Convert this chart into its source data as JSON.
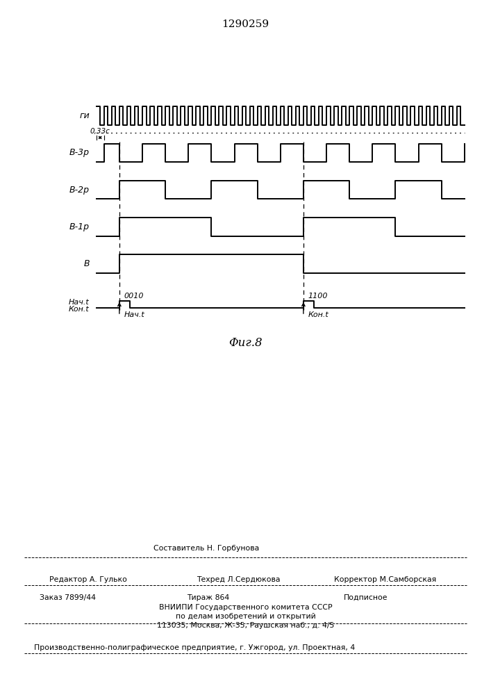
{
  "title": "1290259",
  "fig_label": "Φиг.8",
  "background_color": "#ffffff",
  "line_color": "#000000",
  "signal_labels": [
    "ги",
    "В-3р",
    "В-2р",
    "В-1р",
    "В"
  ],
  "annotation1_code": "0010",
  "annotation1_label": "Нач.t",
  "annotation2_code": "1100",
  "annotation2_label": "Кон.t",
  "period_label": "0,33с",
  "nachal_t": "Нач.t",
  "kon_t": "Кон.t",
  "editor_line": "Редактор А. Гулько",
  "sostavitel": "Составитель Н. Горбунова",
  "tehred": "Техред Л.Сердюкова",
  "korrektor": "Корректор М.Самборская",
  "zakaz": "Заказ 7899/44",
  "tirazh": "Тираж 864",
  "podpisnoe": "Подписное",
  "vniip1": "ВНИИПИ Государственного комитета СССР",
  "vniip2": "по делам изобретений и открытий",
  "vniip3": "113035, Москва, Ж-35, Раушская наб., д. 4/5",
  "proizv": "Производственно-полиграфическое предприятие, г. Ужгород, ул. Проектная, 4"
}
